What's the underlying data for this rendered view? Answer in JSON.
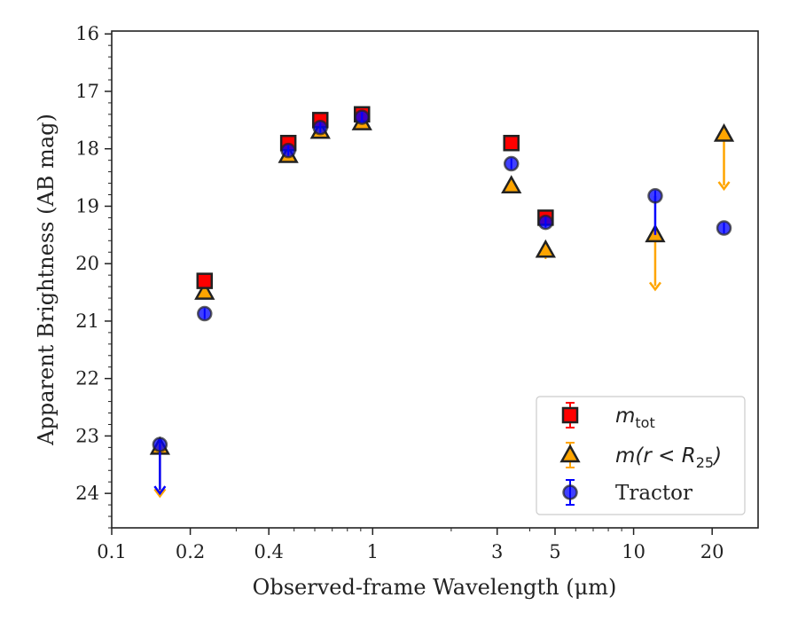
{
  "chart_data": {
    "type": "scatter",
    "xlabel": "Observed-frame Wavelength (μm)",
    "ylabel": "Apparent Brightness (AB mag)",
    "x_scale": "log",
    "y_inverted": true,
    "xlim": [
      0.1,
      30
    ],
    "ylim": [
      24.6,
      15.95
    ],
    "x_ticks": [
      0.1,
      0.2,
      0.4,
      1,
      3,
      5,
      10,
      20
    ],
    "x_tick_labels": [
      "0.1",
      "0.2",
      "0.4",
      "1",
      "3",
      "5",
      "10",
      "20"
    ],
    "y_ticks": [
      16,
      17,
      18,
      19,
      20,
      21,
      22,
      23,
      24
    ],
    "y_tick_labels": [
      "16",
      "17",
      "18",
      "19",
      "20",
      "21",
      "22",
      "23",
      "24"
    ],
    "grid": false,
    "legend_position": "bottom-right",
    "series": [
      {
        "name": "m_tot",
        "legend_label": "m",
        "legend_sub": "tot",
        "marker": "square",
        "color": "#ff0000",
        "points": [
          {
            "x": 0.227,
            "y": 20.3
          },
          {
            "x": 0.475,
            "y": 17.9
          },
          {
            "x": 0.63,
            "y": 17.5
          },
          {
            "x": 0.91,
            "y": 17.4
          },
          {
            "x": 3.4,
            "y": 17.9
          },
          {
            "x": 4.6,
            "y": 19.2
          }
        ]
      },
      {
        "name": "m(r < R_25)",
        "legend_label": "m(r < R",
        "legend_sub": "25",
        "legend_suffix": ")",
        "marker": "triangle",
        "color": "#ffa500",
        "points": [
          {
            "x": 0.153,
            "y": 23.2,
            "upper_limit_to": 24.05
          },
          {
            "x": 0.227,
            "y": 20.5
          },
          {
            "x": 0.475,
            "y": 18.12
          },
          {
            "x": 0.63,
            "y": 17.7
          },
          {
            "x": 0.91,
            "y": 17.55
          },
          {
            "x": 3.4,
            "y": 18.65
          },
          {
            "x": 4.6,
            "y": 19.77,
            "err": 0.15
          },
          {
            "x": 12.1,
            "y": 19.5,
            "upper_limit_to": 20.45
          },
          {
            "x": 22.2,
            "y": 17.75,
            "upper_limit_to": 18.7
          }
        ]
      },
      {
        "name": "Tractor",
        "legend_label": "Tractor",
        "marker": "circle",
        "color": "#0000ff",
        "points": [
          {
            "x": 0.153,
            "y": 23.15,
            "upper_limit_to": 24.0
          },
          {
            "x": 0.227,
            "y": 20.87
          },
          {
            "x": 0.475,
            "y": 18.03
          },
          {
            "x": 0.63,
            "y": 17.63
          },
          {
            "x": 0.91,
            "y": 17.45
          },
          {
            "x": 3.4,
            "y": 18.26
          },
          {
            "x": 4.6,
            "y": 19.28
          },
          {
            "x": 12.1,
            "y": 18.82,
            "err_to": 19.5
          },
          {
            "x": 22.2,
            "y": 19.38
          }
        ]
      }
    ]
  }
}
